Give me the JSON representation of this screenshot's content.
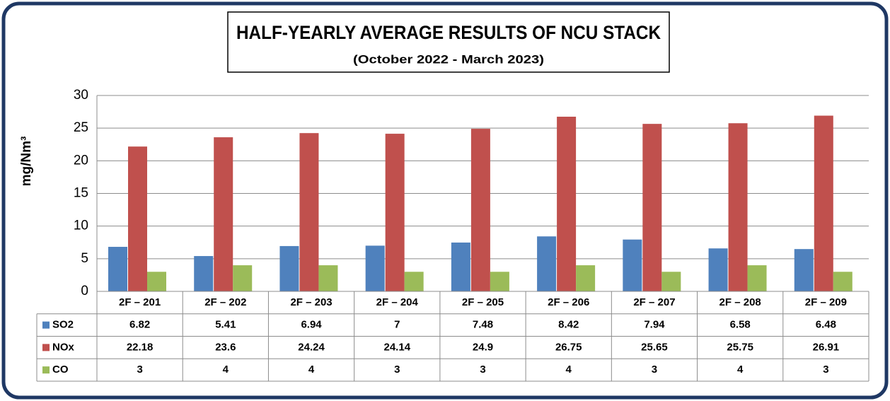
{
  "chart_data": {
    "type": "bar",
    "title": "HALF-YEARLY AVERAGE RESULTS OF NCU STACK",
    "subtitle": "(October 2022 - March 2023)",
    "y_label": "mg/Nm³",
    "categories": [
      "2F – 201",
      "2F – 202",
      "2F – 203",
      "2F – 204",
      "2F – 205",
      "2F – 206",
      "2F – 207",
      "2F – 208",
      "2F – 209"
    ],
    "series": [
      {
        "name": "SO2",
        "color": "#4f81bd",
        "values": [
          6.82,
          5.41,
          6.94,
          7,
          7.48,
          8.42,
          7.94,
          6.58,
          6.48
        ]
      },
      {
        "name": "NOx",
        "color": "#c0504d",
        "values": [
          22.18,
          23.6,
          24.24,
          24.14,
          24.9,
          26.75,
          25.65,
          25.75,
          26.91
        ]
      },
      {
        "name": "CO",
        "color": "#9bbb59",
        "values": [
          3,
          4,
          4,
          3,
          3,
          4,
          3,
          4,
          3
        ]
      }
    ],
    "ylim": [
      0,
      30
    ],
    "yticks": [
      0,
      5,
      10,
      15,
      20,
      25,
      30
    ],
    "grid": true
  }
}
